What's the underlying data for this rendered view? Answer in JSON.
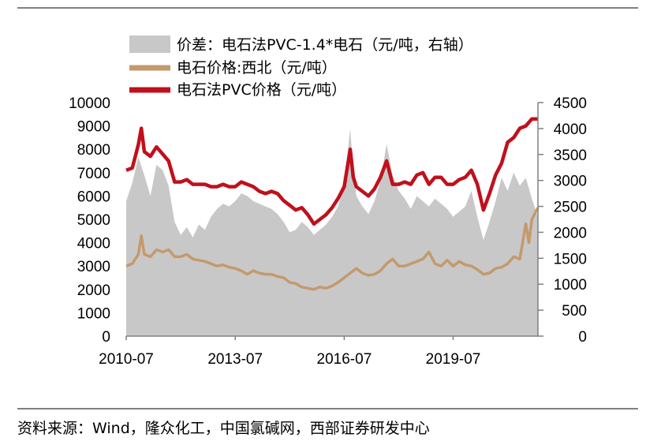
{
  "chart_data": {
    "type": "area",
    "x_ticks": [
      "2010-07",
      "2013-07",
      "2016-07",
      "2019-07"
    ],
    "x_range": [
      "2010-07",
      "2021-11"
    ],
    "left_axis": {
      "ticks": [
        "0",
        "1000",
        "2000",
        "3000",
        "4000",
        "5000",
        "6000",
        "7000",
        "8000",
        "9000",
        "10000"
      ],
      "range": [
        0,
        10000
      ]
    },
    "right_axis": {
      "ticks": [
        "0",
        "500",
        "1000",
        "1500",
        "2000",
        "2500",
        "3000",
        "3500",
        "4000",
        "4500"
      ],
      "range": [
        0,
        4500
      ]
    },
    "legend": [
      "价差：电石法PVC-1.4*电石（元/吨，右轴）",
      "电石价格:西北（元/吨）",
      "电石法PVC价格（元/吨）"
    ],
    "source": "资料来源：Wind，隆众化工，中国氯碱网，西部证券研发中心",
    "colors": {
      "spread": "#c8c8c8",
      "carbide": "#c49a6c",
      "pvc": "#c0101c",
      "axis": "#808080"
    },
    "series": [
      {
        "name": "价差：电石法PVC-1.4*电石（元/吨，右轴）",
        "axis": "right",
        "points": [
          [
            "2010-07",
            2600
          ],
          [
            "2010-09",
            2950
          ],
          [
            "2010-11",
            3450
          ],
          [
            "2011-01",
            3100
          ],
          [
            "2011-03",
            2700
          ],
          [
            "2011-05",
            3300
          ],
          [
            "2011-07",
            3200
          ],
          [
            "2011-09",
            2900
          ],
          [
            "2011-11",
            2200
          ],
          [
            "2012-01",
            1950
          ],
          [
            "2012-03",
            2100
          ],
          [
            "2012-05",
            1900
          ],
          [
            "2012-07",
            2150
          ],
          [
            "2012-09",
            2050
          ],
          [
            "2012-11",
            2300
          ],
          [
            "2013-01",
            2450
          ],
          [
            "2013-03",
            2550
          ],
          [
            "2013-05",
            2500
          ],
          [
            "2013-07",
            2600
          ],
          [
            "2013-09",
            2750
          ],
          [
            "2013-11",
            2700
          ],
          [
            "2014-01",
            2600
          ],
          [
            "2014-03",
            2550
          ],
          [
            "2014-05",
            2500
          ],
          [
            "2014-07",
            2450
          ],
          [
            "2014-09",
            2350
          ],
          [
            "2014-11",
            2200
          ],
          [
            "2015-01",
            2000
          ],
          [
            "2015-03",
            2050
          ],
          [
            "2015-05",
            2200
          ],
          [
            "2015-07",
            2100
          ],
          [
            "2015-09",
            1950
          ],
          [
            "2015-11",
            2050
          ],
          [
            "2016-01",
            2150
          ],
          [
            "2016-03",
            2300
          ],
          [
            "2016-05",
            2500
          ],
          [
            "2016-07",
            2900
          ],
          [
            "2016-09",
            4000
          ],
          [
            "2016-10",
            3200
          ],
          [
            "2016-11",
            2700
          ],
          [
            "2017-01",
            2500
          ],
          [
            "2017-03",
            2350
          ],
          [
            "2017-05",
            2600
          ],
          [
            "2017-07",
            3000
          ],
          [
            "2017-09",
            3700
          ],
          [
            "2017-11",
            3100
          ],
          [
            "2018-01",
            2800
          ],
          [
            "2018-03",
            2650
          ],
          [
            "2018-05",
            2450
          ],
          [
            "2018-07",
            2700
          ],
          [
            "2018-09",
            2600
          ],
          [
            "2018-11",
            2500
          ],
          [
            "2019-01",
            2650
          ],
          [
            "2019-03",
            2550
          ],
          [
            "2019-05",
            2450
          ],
          [
            "2019-07",
            2300
          ],
          [
            "2019-09",
            2400
          ],
          [
            "2019-11",
            2500
          ],
          [
            "2020-01",
            2800
          ],
          [
            "2020-03",
            2300
          ],
          [
            "2020-05",
            1850
          ],
          [
            "2020-07",
            2200
          ],
          [
            "2020-09",
            2600
          ],
          [
            "2020-11",
            3050
          ],
          [
            "2021-01",
            2800
          ],
          [
            "2021-03",
            3150
          ],
          [
            "2021-05",
            2900
          ],
          [
            "2021-07",
            3050
          ],
          [
            "2021-09",
            2650
          ],
          [
            "2021-11",
            2300
          ]
        ]
      },
      {
        "name": "电石价格:西北（元/吨）",
        "axis": "left",
        "points": [
          [
            "2010-07",
            3000
          ],
          [
            "2010-09",
            3100
          ],
          [
            "2010-11",
            3500
          ],
          [
            "2010-12",
            4300
          ],
          [
            "2011-01",
            3500
          ],
          [
            "2011-03",
            3400
          ],
          [
            "2011-05",
            3700
          ],
          [
            "2011-07",
            3600
          ],
          [
            "2011-09",
            3700
          ],
          [
            "2011-11",
            3400
          ],
          [
            "2012-01",
            3400
          ],
          [
            "2012-03",
            3500
          ],
          [
            "2012-05",
            3300
          ],
          [
            "2012-07",
            3250
          ],
          [
            "2012-09",
            3200
          ],
          [
            "2012-11",
            3100
          ],
          [
            "2013-01",
            3000
          ],
          [
            "2013-03",
            3050
          ],
          [
            "2013-05",
            2950
          ],
          [
            "2013-07",
            2900
          ],
          [
            "2013-09",
            2800
          ],
          [
            "2013-11",
            2650
          ],
          [
            "2014-01",
            2800
          ],
          [
            "2014-03",
            2700
          ],
          [
            "2014-05",
            2650
          ],
          [
            "2014-07",
            2650
          ],
          [
            "2014-09",
            2550
          ],
          [
            "2014-11",
            2500
          ],
          [
            "2015-01",
            2300
          ],
          [
            "2015-03",
            2250
          ],
          [
            "2015-05",
            2100
          ],
          [
            "2015-07",
            2050
          ],
          [
            "2015-09",
            2000
          ],
          [
            "2015-11",
            2100
          ],
          [
            "2016-01",
            2050
          ],
          [
            "2016-03",
            2150
          ],
          [
            "2016-05",
            2300
          ],
          [
            "2016-07",
            2500
          ],
          [
            "2016-09",
            2700
          ],
          [
            "2016-11",
            2900
          ],
          [
            "2017-01",
            2700
          ],
          [
            "2017-03",
            2600
          ],
          [
            "2017-05",
            2650
          ],
          [
            "2017-07",
            2800
          ],
          [
            "2017-09",
            3100
          ],
          [
            "2017-11",
            3300
          ],
          [
            "2018-01",
            3000
          ],
          [
            "2018-03",
            3000
          ],
          [
            "2018-05",
            3100
          ],
          [
            "2018-07",
            3200
          ],
          [
            "2018-09",
            3300
          ],
          [
            "2018-11",
            3600
          ],
          [
            "2019-01",
            3100
          ],
          [
            "2019-03",
            3000
          ],
          [
            "2019-05",
            3250
          ],
          [
            "2019-07",
            3000
          ],
          [
            "2019-09",
            3200
          ],
          [
            "2019-11",
            3050
          ],
          [
            "2020-01",
            3000
          ],
          [
            "2020-03",
            2850
          ],
          [
            "2020-05",
            2650
          ],
          [
            "2020-07",
            2700
          ],
          [
            "2020-09",
            2900
          ],
          [
            "2020-11",
            2950
          ],
          [
            "2021-01",
            3100
          ],
          [
            "2021-03",
            3400
          ],
          [
            "2021-05",
            3300
          ],
          [
            "2021-07",
            4800
          ],
          [
            "2021-08",
            4000
          ],
          [
            "2021-09",
            5000
          ],
          [
            "2021-11",
            5500
          ]
        ]
      },
      {
        "name": "电石法PVC价格（元/吨）",
        "axis": "left",
        "points": [
          [
            "2010-07",
            7100
          ],
          [
            "2010-09",
            7200
          ],
          [
            "2010-11",
            8200
          ],
          [
            "2010-12",
            8900
          ],
          [
            "2011-01",
            7900
          ],
          [
            "2011-03",
            7700
          ],
          [
            "2011-05",
            8100
          ],
          [
            "2011-07",
            7800
          ],
          [
            "2011-09",
            7500
          ],
          [
            "2011-11",
            6600
          ],
          [
            "2012-01",
            6600
          ],
          [
            "2012-03",
            6700
          ],
          [
            "2012-05",
            6500
          ],
          [
            "2012-07",
            6500
          ],
          [
            "2012-09",
            6500
          ],
          [
            "2012-11",
            6400
          ],
          [
            "2013-01",
            6400
          ],
          [
            "2013-03",
            6500
          ],
          [
            "2013-05",
            6400
          ],
          [
            "2013-07",
            6400
          ],
          [
            "2013-09",
            6600
          ],
          [
            "2013-11",
            6500
          ],
          [
            "2014-01",
            6400
          ],
          [
            "2014-03",
            6200
          ],
          [
            "2014-05",
            6100
          ],
          [
            "2014-07",
            6200
          ],
          [
            "2014-09",
            6100
          ],
          [
            "2014-11",
            5800
          ],
          [
            "2015-01",
            5600
          ],
          [
            "2015-03",
            5400
          ],
          [
            "2015-05",
            5500
          ],
          [
            "2015-07",
            5200
          ],
          [
            "2015-09",
            4800
          ],
          [
            "2015-11",
            5000
          ],
          [
            "2016-01",
            5200
          ],
          [
            "2016-03",
            5500
          ],
          [
            "2016-05",
            5900
          ],
          [
            "2016-07",
            6400
          ],
          [
            "2016-09",
            8000
          ],
          [
            "2016-10",
            6800
          ],
          [
            "2016-11",
            6400
          ],
          [
            "2017-01",
            6200
          ],
          [
            "2017-03",
            6000
          ],
          [
            "2017-05",
            6300
          ],
          [
            "2017-07",
            6800
          ],
          [
            "2017-09",
            7500
          ],
          [
            "2017-11",
            6500
          ],
          [
            "2018-01",
            6500
          ],
          [
            "2018-03",
            6600
          ],
          [
            "2018-05",
            6500
          ],
          [
            "2018-07",
            6900
          ],
          [
            "2018-09",
            7000
          ],
          [
            "2018-11",
            6500
          ],
          [
            "2019-01",
            6800
          ],
          [
            "2019-03",
            6800
          ],
          [
            "2019-05",
            6500
          ],
          [
            "2019-07",
            6500
          ],
          [
            "2019-09",
            6700
          ],
          [
            "2019-11",
            6800
          ],
          [
            "2020-01",
            7100
          ],
          [
            "2020-03",
            6500
          ],
          [
            "2020-05",
            5400
          ],
          [
            "2020-07",
            6100
          ],
          [
            "2020-09",
            6900
          ],
          [
            "2020-11",
            7400
          ],
          [
            "2021-01",
            8300
          ],
          [
            "2021-03",
            8500
          ],
          [
            "2021-05",
            8900
          ],
          [
            "2021-07",
            9000
          ],
          [
            "2021-09",
            9300
          ],
          [
            "2021-11",
            9300
          ]
        ]
      }
    ]
  }
}
